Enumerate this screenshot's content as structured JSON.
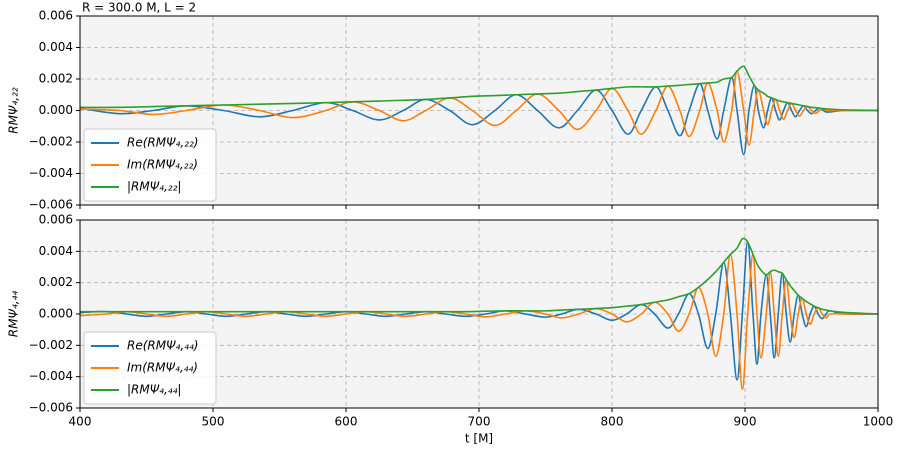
{
  "chart_data": [
    {
      "type": "line",
      "title": "R = 300.0 M, L = 2",
      "ylabel": "RMΨ₄,₂₂",
      "x": [
        400,
        430,
        455,
        480,
        508,
        535,
        560,
        585,
        605,
        625,
        643,
        660,
        678,
        695,
        712,
        728,
        744,
        760,
        774,
        788,
        800,
        812,
        822,
        833,
        842,
        851,
        858,
        866,
        872,
        879,
        884,
        890,
        894,
        899,
        903,
        907,
        910,
        914,
        917,
        920,
        923,
        926,
        929,
        932,
        935,
        938,
        941,
        944,
        947,
        950,
        953,
        956,
        959,
        962,
        975,
        1000
      ],
      "series": [
        {
          "name": "Re(RMΨ₄,₂₂)",
          "color": "#1f77b4",
          "values": [
            0.00015,
            -0.0002,
            0,
            0.0003,
            0,
            -0.0004,
            0,
            0.0005,
            0,
            -0.0006,
            0,
            0.0007,
            0,
            -0.0009,
            0,
            0.001,
            0,
            -0.0011,
            0,
            0.0013,
            0,
            -0.0015,
            0,
            0.0015,
            0,
            -0.0016,
            0,
            0.0017,
            0,
            -0.0018,
            0,
            0.0021,
            0,
            -0.0028,
            0,
            0.0016,
            0,
            -0.0011,
            0,
            0.0008,
            0,
            -0.0006,
            0,
            0.0005,
            0,
            -0.0004,
            0,
            0.0003,
            0,
            -0.0002,
            0,
            0.00015,
            0,
            -0.0001,
            0,
            0
          ]
        },
        {
          "name": "Im(RMΨ₄,₂₂)",
          "color": "#ff7f0e",
          "values": [
            0.0001,
            0,
            -0.00025,
            0,
            0.00035,
            0,
            -0.00045,
            0,
            0.00055,
            0,
            -0.00065,
            0,
            0.0008,
            0,
            -0.00095,
            0,
            0.00105,
            0,
            -0.0012,
            0,
            0.0014,
            0,
            -0.0015,
            0,
            0.00155,
            0,
            -0.00165,
            0,
            0.00175,
            0,
            -0.002,
            0,
            0.0025,
            0,
            -0.0022,
            0,
            0.0013,
            0,
            -0.0009,
            0,
            0.0007,
            0,
            -0.00055,
            0,
            0.00045,
            0,
            -0.00035,
            0,
            0.00025,
            0,
            -0.00018,
            0,
            0.00012,
            0,
            0,
            0
          ]
        },
        {
          "name": "|RMΨ₄,₂₂|",
          "color": "#2ca02c",
          "values": [
            0.0002,
            0.0002,
            0.00025,
            0.0003,
            0.00035,
            0.0004,
            0.00045,
            0.0005,
            0.00055,
            0.0006,
            0.00065,
            0.0007,
            0.0008,
            0.0009,
            0.00095,
            0.001,
            0.00105,
            0.0011,
            0.0012,
            0.0013,
            0.0014,
            0.0015,
            0.0015,
            0.0015,
            0.00155,
            0.0016,
            0.00165,
            0.0017,
            0.00175,
            0.0018,
            0.002,
            0.0021,
            0.0025,
            0.0028,
            0.0022,
            0.0016,
            0.0013,
            0.0011,
            0.0009,
            0.0008,
            0.0007,
            0.0006,
            0.00055,
            0.0005,
            0.00045,
            0.0004,
            0.00035,
            0.0003,
            0.00025,
            0.0002,
            0.00018,
            0.00015,
            0.00012,
            0.0001,
            4e-05,
            0
          ]
        }
      ],
      "xlim": [
        400,
        1000
      ],
      "xticks": [
        400,
        500,
        600,
        700,
        800,
        900,
        1000
      ],
      "ylim": [
        -0.006,
        0.006
      ],
      "yticks": [
        {
          "value": -0.006,
          "label": "−0.006"
        },
        {
          "value": -0.004,
          "label": "−0.004"
        },
        {
          "value": -0.002,
          "label": "−0.002"
        },
        {
          "value": 0,
          "label": "0.000"
        },
        {
          "value": 0.002,
          "label": "0.002"
        },
        {
          "value": 0.004,
          "label": "0.004"
        },
        {
          "value": 0.006,
          "label": "0.006"
        }
      ],
      "grid": true,
      "legend": "lower left"
    },
    {
      "type": "line",
      "ylabel": "RMΨ₄,₄₄",
      "xlabel": "t [M]",
      "x": [
        400,
        420,
        435,
        450,
        465,
        480,
        495,
        510,
        525,
        540,
        555,
        570,
        585,
        600,
        615,
        630,
        645,
        660,
        675,
        690,
        705,
        720,
        735,
        750,
        762,
        775,
        788,
        800,
        811,
        822,
        832,
        842,
        850,
        858,
        865,
        872,
        878,
        884,
        889,
        894,
        898,
        902,
        906,
        909,
        912,
        916,
        919,
        922,
        925,
        928,
        931,
        934,
        937,
        940,
        943,
        946,
        949,
        952,
        955,
        958,
        961,
        964,
        975,
        1000
      ],
      "series": [
        {
          "name": "Re(RMΨ₄,₄₄)",
          "color": "#1f77b4",
          "values": [
            0.0001,
            0.00015,
            0,
            -0.00015,
            0,
            0.00015,
            0,
            -0.00015,
            0,
            0.00015,
            0,
            -0.00015,
            0,
            0.00015,
            0,
            -0.00015,
            0,
            0.00015,
            0,
            -0.00015,
            0,
            0.0002,
            0,
            -0.0002,
            0,
            0.0003,
            0,
            -0.0004,
            0,
            0.0006,
            0,
            -0.0009,
            0,
            0.0013,
            0,
            -0.0022,
            0,
            0.0033,
            0,
            -0.0042,
            0,
            0.0046,
            0,
            -0.0032,
            0,
            0.0025,
            0,
            -0.0028,
            0,
            0.0026,
            0,
            -0.0018,
            0,
            0.0012,
            0,
            -0.0008,
            0,
            0.0005,
            0,
            -0.0003,
            0,
            0.0002,
            0,
            0
          ]
        },
        {
          "name": "Im(RMΨ₄,₄₄)",
          "color": "#ff7f0e",
          "values": [
            -0.0001,
            0,
            0.00015,
            0,
            -0.00015,
            0,
            0.00015,
            0,
            -0.00015,
            0,
            0.00015,
            0,
            -0.00015,
            0,
            0.00015,
            0,
            -0.00015,
            0,
            0.00015,
            0,
            -0.00018,
            0,
            0.0002,
            0,
            -0.00025,
            0,
            0.00035,
            0,
            -0.0005,
            0,
            0.00075,
            0,
            -0.0011,
            0,
            0.0017,
            0,
            -0.0027,
            0,
            0.0038,
            0,
            -0.0048,
            0,
            0.0038,
            0,
            -0.0028,
            0,
            0.0027,
            0,
            -0.0027,
            0,
            0.0022,
            0,
            -0.0015,
            0,
            0.001,
            0,
            -0.00065,
            0,
            0.0004,
            0,
            -0.00025,
            0,
            0,
            0
          ]
        },
        {
          "name": "|RMΨ₄,₄₄|",
          "color": "#2ca02c",
          "values": [
            0.00015,
            0.00015,
            0.00015,
            0.00015,
            0.00015,
            0.00015,
            0.00015,
            0.00015,
            0.00015,
            0.00015,
            0.00015,
            0.00015,
            0.00015,
            0.00015,
            0.00015,
            0.00015,
            0.00015,
            0.00015,
            0.00015,
            0.00015,
            0.00018,
            0.0002,
            0.0002,
            0.0002,
            0.00025,
            0.0003,
            0.00035,
            0.0004,
            0.0005,
            0.0006,
            0.00075,
            0.0009,
            0.0011,
            0.0013,
            0.0017,
            0.0022,
            0.0027,
            0.0033,
            0.0038,
            0.0042,
            0.0048,
            0.0046,
            0.0038,
            0.0032,
            0.0028,
            0.0025,
            0.0027,
            0.0028,
            0.0027,
            0.0026,
            0.0022,
            0.0018,
            0.0015,
            0.0012,
            0.001,
            0.0008,
            0.00065,
            0.0005,
            0.0004,
            0.0003,
            0.00025,
            0.0002,
            0.0001,
            0
          ]
        }
      ],
      "xlim": [
        400,
        1000
      ],
      "xticks": [
        400,
        500,
        600,
        700,
        800,
        900,
        1000
      ],
      "ylim": [
        -0.006,
        0.006
      ],
      "yticks": [
        {
          "value": -0.006,
          "label": "−0.006"
        },
        {
          "value": -0.004,
          "label": "−0.004"
        },
        {
          "value": -0.002,
          "label": "−0.002"
        },
        {
          "value": 0,
          "label": "0.000"
        },
        {
          "value": 0.002,
          "label": "0.002"
        },
        {
          "value": 0.004,
          "label": "0.004"
        },
        {
          "value": 0.006,
          "label": "0.006"
        }
      ],
      "grid": true,
      "legend": "lower left"
    }
  ]
}
